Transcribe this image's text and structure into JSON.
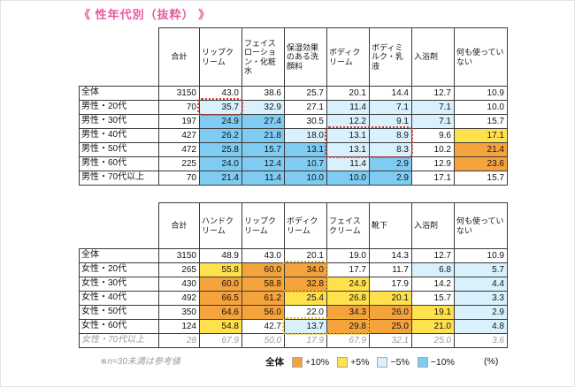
{
  "title": "《 性年代別（抜粋） 》",
  "footnote": "※n=30未満は参考値",
  "unit": "(%)",
  "legend": {
    "baseline": "全体",
    "items": [
      {
        "label": "+10%",
        "code": "o"
      },
      {
        "label": "+5%",
        "code": "y"
      },
      {
        "label": "−5%",
        "code": "lb"
      },
      {
        "label": "−10%",
        "code": "b"
      }
    ]
  },
  "palette": {
    "o": "#F5A33C",
    "y": "#FFE14D",
    "lb": "#D9F1FC",
    "b": "#7FCBF2",
    "red_box": "#E0332C",
    "yellow_box": "#EDC211",
    "title_pink": "#E75A9C"
  },
  "tables": [
    {
      "name": "men",
      "total_header": "合計",
      "col_headers": [
        "リップクリーム",
        "フェイスローション・化粧水",
        "保湿効果のある洗顔料",
        "ボディクリーム",
        "ボディミルク・乳液",
        "入浴剤",
        "何も使っていない"
      ],
      "rows": [
        {
          "label": "全体",
          "n": "3150",
          "values": [
            "43.0",
            "38.6",
            "25.7",
            "20.1",
            "14.4",
            "12.7",
            "10.9"
          ],
          "codes": [
            "",
            "",
            "",
            "",
            "",
            "",
            ""
          ],
          "muted": false
        },
        {
          "label": "男性・20代",
          "n": "70",
          "values": [
            "35.7",
            "32.9",
            "27.1",
            "11.4",
            "7.1",
            "7.1",
            "10.0"
          ],
          "codes": [
            "lb",
            "lb",
            "",
            "lb",
            "lb",
            "lb",
            ""
          ],
          "muted": false
        },
        {
          "label": "男性・30代",
          "n": "197",
          "values": [
            "24.9",
            "27.4",
            "30.5",
            "12.2",
            "9.1",
            "7.1",
            "15.7"
          ],
          "codes": [
            "b",
            "b",
            "",
            "lb",
            "lb",
            "lb",
            ""
          ],
          "muted": false
        },
        {
          "label": "男性・40代",
          "n": "427",
          "values": [
            "26.2",
            "21.8",
            "18.0",
            "13.1",
            "8.9",
            "9.6",
            "17.1"
          ],
          "codes": [
            "b",
            "b",
            "lb",
            "lb",
            "lb",
            "",
            "y"
          ],
          "muted": false
        },
        {
          "label": "男性・50代",
          "n": "472",
          "values": [
            "25.8",
            "15.7",
            "13.1",
            "13.1",
            "8.3",
            "10.2",
            "21.4"
          ],
          "codes": [
            "b",
            "b",
            "b",
            "lb",
            "lb",
            "",
            "o"
          ],
          "muted": false
        },
        {
          "label": "男性・60代",
          "n": "225",
          "values": [
            "24.0",
            "12.4",
            "10.7",
            "11.4",
            "2.9",
            "12.9",
            "23.6"
          ],
          "codes": [
            "b",
            "b",
            "b",
            "lb",
            "b",
            "",
            "o"
          ],
          "muted": false
        },
        {
          "label": "男性・70代以上",
          "n": "70",
          "values": [
            "21.4",
            "11.4",
            "10.0",
            "10.0",
            "2.9",
            "17.1",
            "15.7"
          ],
          "codes": [
            "b",
            "b",
            "b",
            "b",
            "b",
            "",
            ""
          ],
          "muted": false
        }
      ],
      "highlights": [
        {
          "color": "red",
          "rows": [
            1,
            1
          ],
          "cols": [
            0,
            0
          ]
        },
        {
          "color": "red",
          "rows": [
            3,
            4
          ],
          "cols": [
            3,
            4
          ]
        }
      ]
    },
    {
      "name": "women",
      "total_header": "合計",
      "col_headers": [
        "ハンドクリーム",
        "リップクリーム",
        "ボディクリーム",
        "フェイスクリーム",
        "靴下",
        "入浴剤",
        "何も使っていない"
      ],
      "rows": [
        {
          "label": "全体",
          "n": "3150",
          "values": [
            "48.9",
            "43.0",
            "20.1",
            "19.0",
            "14.3",
            "12.7",
            "10.9"
          ],
          "codes": [
            "",
            "",
            "",
            "",
            "",
            "",
            ""
          ],
          "muted": false
        },
        {
          "label": "女性・20代",
          "n": "265",
          "values": [
            "55.8",
            "60.0",
            "34.0",
            "17.7",
            "11.7",
            "6.8",
            "5.7"
          ],
          "codes": [
            "y",
            "o",
            "o",
            "",
            "",
            "lb",
            "lb"
          ],
          "muted": false
        },
        {
          "label": "女性・30代",
          "n": "430",
          "values": [
            "60.0",
            "58.8",
            "32.8",
            "24.9",
            "17.9",
            "14.2",
            "4.4"
          ],
          "codes": [
            "o",
            "o",
            "o",
            "y",
            "",
            "",
            "lb"
          ],
          "muted": false
        },
        {
          "label": "女性・40代",
          "n": "492",
          "values": [
            "66.5",
            "61.2",
            "25.4",
            "26.8",
            "20.1",
            "15.7",
            "3.3"
          ],
          "codes": [
            "o",
            "o",
            "y",
            "y",
            "y",
            "",
            "lb"
          ],
          "muted": false
        },
        {
          "label": "女性・50代",
          "n": "350",
          "values": [
            "64.6",
            "56.0",
            "22.0",
            "34.3",
            "26.0",
            "19.1",
            "2.9"
          ],
          "codes": [
            "o",
            "o",
            "",
            "o",
            "o",
            "y",
            "lb"
          ],
          "muted": false
        },
        {
          "label": "女性・60代",
          "n": "124",
          "values": [
            "54.8",
            "42.7",
            "13.7",
            "29.8",
            "25.0",
            "21.0",
            "4.8"
          ],
          "codes": [
            "y",
            "",
            "lb",
            "o",
            "o",
            "y",
            "lb"
          ],
          "muted": false
        },
        {
          "label": "女性・70代以上",
          "n": "28",
          "values": [
            "67.9",
            "50.0",
            "17.9",
            "67.9",
            "32.1",
            "25.0",
            "3.6"
          ],
          "codes": [
            "",
            "",
            "",
            "",
            "",
            "",
            ""
          ],
          "muted": true
        }
      ],
      "highlights": [
        {
          "color": "yellow",
          "rows": [
            1,
            2
          ],
          "cols": [
            2,
            2
          ]
        },
        {
          "color": "yellow",
          "rows": [
            5,
            5
          ],
          "cols": [
            2,
            3
          ]
        }
      ]
    }
  ],
  "chart_data": [
    {
      "type": "heatmap",
      "title": "性年代別（抜粋）男性",
      "columns": [
        "リップクリーム",
        "フェイスローション・化粧水",
        "保湿効果のある洗顔料",
        "ボディクリーム",
        "ボディミルク・乳液",
        "入浴剤",
        "何も使っていない"
      ],
      "rows": [
        "全体",
        "男性・20代",
        "男性・30代",
        "男性・40代",
        "男性・50代",
        "男性・60代",
        "男性・70代以上"
      ],
      "n": [
        3150,
        70,
        197,
        427,
        472,
        225,
        70
      ],
      "values": [
        [
          43.0,
          38.6,
          25.7,
          20.1,
          14.4,
          12.7,
          10.9
        ],
        [
          35.7,
          32.9,
          27.1,
          11.4,
          7.1,
          7.1,
          10.0
        ],
        [
          24.9,
          27.4,
          30.5,
          12.2,
          9.1,
          7.1,
          15.7
        ],
        [
          26.2,
          21.8,
          18.0,
          13.1,
          8.9,
          9.6,
          17.1
        ],
        [
          25.8,
          15.7,
          13.1,
          13.1,
          8.3,
          10.2,
          21.4
        ],
        [
          24.0,
          12.4,
          10.7,
          11.4,
          2.9,
          12.9,
          23.6
        ],
        [
          21.4,
          11.4,
          10.0,
          10.0,
          2.9,
          17.1,
          15.7
        ]
      ],
      "legend": [
        "全体",
        "+10%",
        "+5%",
        "−5%",
        "−10%"
      ],
      "unit": "%"
    },
    {
      "type": "heatmap",
      "title": "性年代別（抜粋）女性",
      "columns": [
        "ハンドクリーム",
        "リップクリーム",
        "ボディクリーム",
        "フェイスクリーム",
        "靴下",
        "入浴剤",
        "何も使っていない"
      ],
      "rows": [
        "全体",
        "女性・20代",
        "女性・30代",
        "女性・40代",
        "女性・50代",
        "女性・60代",
        "女性・70代以上"
      ],
      "n": [
        3150,
        265,
        430,
        492,
        350,
        124,
        28
      ],
      "values": [
        [
          48.9,
          43.0,
          20.1,
          19.0,
          14.3,
          12.7,
          10.9
        ],
        [
          55.8,
          60.0,
          34.0,
          17.7,
          11.7,
          6.8,
          5.7
        ],
        [
          60.0,
          58.8,
          32.8,
          24.9,
          17.9,
          14.2,
          4.4
        ],
        [
          66.5,
          61.2,
          25.4,
          26.8,
          20.1,
          15.7,
          3.3
        ],
        [
          64.6,
          56.0,
          22.0,
          34.3,
          26.0,
          19.1,
          2.9
        ],
        [
          54.8,
          42.7,
          13.7,
          29.8,
          25.0,
          21.0,
          4.8
        ],
        [
          67.9,
          50.0,
          17.9,
          67.9,
          32.1,
          25.0,
          3.6
        ]
      ],
      "legend": [
        "全体",
        "+10%",
        "+5%",
        "−5%",
        "−10%"
      ],
      "unit": "%"
    }
  ]
}
